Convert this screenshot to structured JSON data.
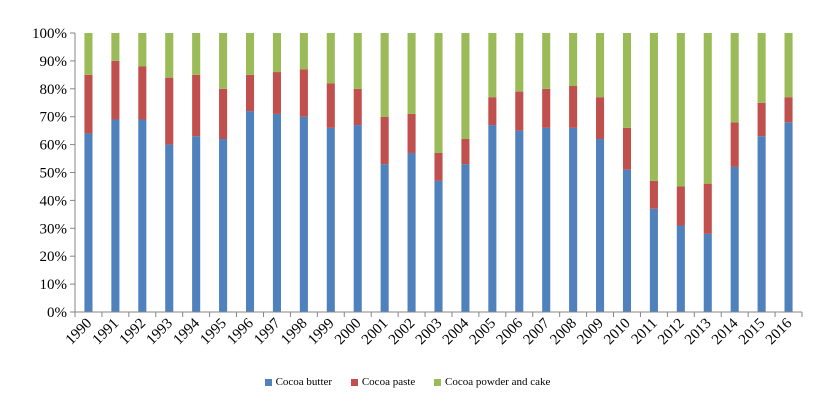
{
  "chart_data": {
    "type": "bar",
    "stacked": true,
    "title": "",
    "xlabel": "",
    "ylabel": "",
    "ylim": [
      0,
      100
    ],
    "y_ticks": [
      "0%",
      "10%",
      "20%",
      "30%",
      "40%",
      "50%",
      "60%",
      "70%",
      "80%",
      "90%",
      "100%"
    ],
    "grid": false,
    "legend_position": "bottom",
    "categories": [
      "1990",
      "1991",
      "1992",
      "1993",
      "1994",
      "1995",
      "1996",
      "1997",
      "1998",
      "1999",
      "2000",
      "2001",
      "2002",
      "2003",
      "2004",
      "2005",
      "2006",
      "2007",
      "2008",
      "2009",
      "2010",
      "2011",
      "2012",
      "2013",
      "2014",
      "2015",
      "2016"
    ],
    "series": [
      {
        "name": "Cocoa butter",
        "color": "#4f81bd",
        "values": [
          64,
          69,
          69,
          60,
          63,
          62,
          72,
          71,
          70,
          66,
          67,
          53,
          57,
          47,
          53,
          67,
          65,
          66,
          66,
          62,
          51,
          37,
          31,
          28,
          52,
          63,
          68
        ]
      },
      {
        "name": "Cocoa paste",
        "color": "#c0504d",
        "values": [
          21,
          21,
          19,
          24,
          22,
          18,
          13,
          15,
          17,
          16,
          13,
          17,
          14,
          10,
          9,
          10,
          14,
          14,
          15,
          15,
          15,
          10,
          14,
          18,
          16,
          12,
          9
        ]
      },
      {
        "name": "Cocoa powder and cake",
        "color": "#9bbb59",
        "values": [
          15,
          10,
          12,
          16,
          15,
          20,
          15,
          14,
          13,
          18,
          20,
          30,
          29,
          43,
          38,
          23,
          21,
          20,
          19,
          23,
          34,
          53,
          55,
          54,
          32,
          25,
          23
        ]
      }
    ]
  }
}
